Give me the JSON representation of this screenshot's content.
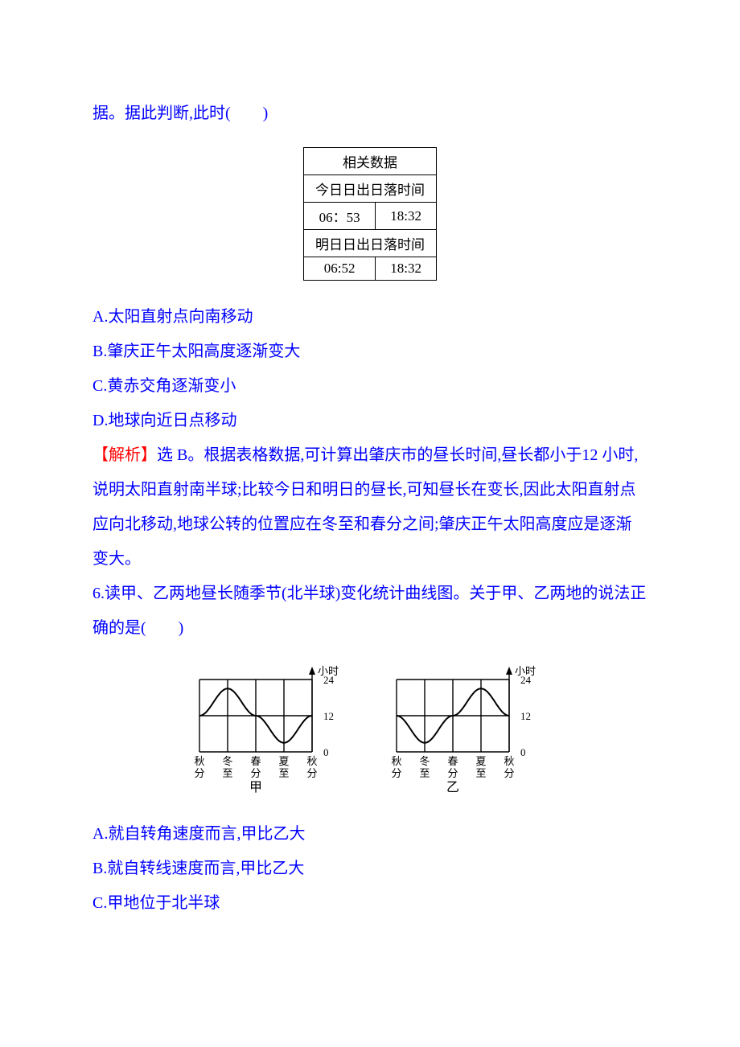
{
  "para_intro_cont": "据。据此判断,此时(　　)",
  "table": {
    "header": "相关数据",
    "today_label": "今日日出日落时间",
    "today_rise": "06：53",
    "today_set": "18:32",
    "tomorrow_label": "明日日出日落时间",
    "tomorrow_rise": "06:52",
    "tomorrow_set": "18:32"
  },
  "q5": {
    "optA": "A.太阳直射点向南移动",
    "optB": "B.肇庆正午太阳高度逐渐变大",
    "optC": "C.黄赤交角逐渐变小",
    "optD": "D.地球向近日点移动"
  },
  "explain5_label": "【解析】",
  "explain5_body": "选 B。根据表格数据,可计算出肇庆市的昼长时间,昼长都小于12 小时,说明太阳直射南半球;比较今日和明日的昼长,可知昼长在变长,因此太阳直射点应向北移动,地球公转的位置应在冬至和春分之间;肇庆正午太阳高度应是逐渐变大。",
  "q6_prompt": "6.读甲、乙两地昼长随季节(北半球)变化统计曲线图。关于甲、乙两地的说法正确的是(　　)",
  "charts": {
    "bg": "#ffffff",
    "line_color": "#000000",
    "line_width": 1.4,
    "curve_width": 2,
    "font_size": 14,
    "y_label": "小时",
    "y_ticks": [
      "24",
      "12",
      "0"
    ],
    "x_ticks": [
      "秋分",
      "冬至",
      "春分",
      "夏至",
      "秋分"
    ],
    "jia": {
      "label": "甲",
      "values_hours": [
        12,
        21,
        12,
        3,
        12
      ]
    },
    "yi": {
      "label": "乙",
      "values_hours": [
        12,
        3,
        12,
        21,
        12
      ]
    }
  },
  "q6": {
    "optA": "A.就自转角速度而言,甲比乙大",
    "optB": "B.就自转线速度而言,甲比乙大",
    "optC": "C.甲地位于北半球"
  }
}
